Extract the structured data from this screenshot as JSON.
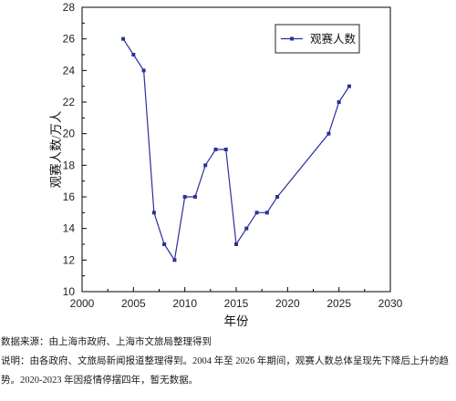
{
  "chart_data": {
    "type": "line",
    "x": [
      2004,
      2005,
      2006,
      2007,
      2008,
      2009,
      2010,
      2011,
      2012,
      2013,
      2014,
      2015,
      2016,
      2017,
      2018,
      2019,
      2024,
      2025,
      2026
    ],
    "series": [
      {
        "name": "观赛人数",
        "values": [
          26,
          25,
          24,
          15,
          13,
          12,
          16,
          16,
          18,
          19,
          19,
          13,
          14,
          15,
          15,
          16,
          20,
          22,
          23
        ]
      }
    ],
    "xlabel": "年份",
    "ylabel": "观赛人数/万人",
    "xlim": [
      2000,
      2030
    ],
    "ylim": [
      10,
      28
    ],
    "xticks": [
      2000,
      2005,
      2010,
      2015,
      2020,
      2025,
      2030
    ],
    "yticks": [
      10,
      12,
      14,
      16,
      18,
      20,
      22,
      24,
      26,
      28
    ],
    "grid": false,
    "legend": "top-right",
    "marker": "square",
    "line_color": "#2b2f9e"
  },
  "footer": {
    "source": "数据来源：由上海市政府、上海市文旅局整理得到",
    "note": "说明：由各政府、文旅局新闻报道整理得到。2004 年至 2026 年期间，观赛人数总体呈现先下降后上升的趋势。2020-2023 年因疫情停摆四年，暂无数据。"
  }
}
